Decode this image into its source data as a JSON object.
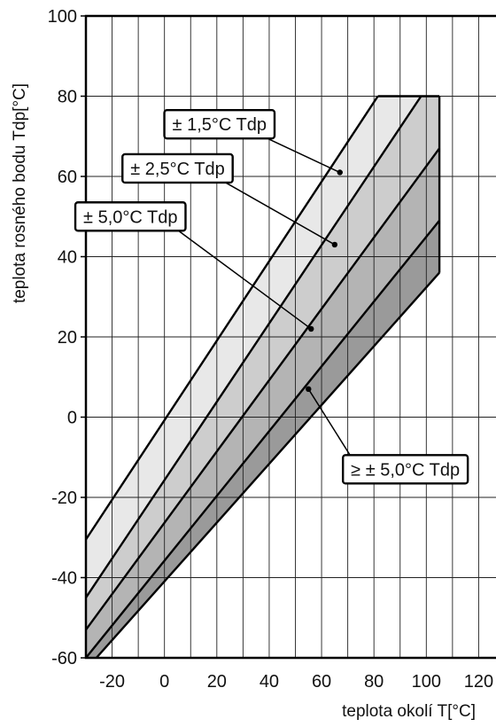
{
  "chart_data": {
    "type": "area",
    "xlabel": "teplota okolí  T[°C]",
    "ylabel": "teplota rosného bodu  Tdp[°C]",
    "xlim": [
      -30,
      130
    ],
    "ylim": [
      -60,
      100
    ],
    "x_ticks": [
      -20,
      0,
      20,
      40,
      60,
      80,
      100,
      120
    ],
    "y_ticks": [
      -60,
      -40,
      -20,
      0,
      20,
      40,
      60,
      80,
      100
    ],
    "x_tick_labels": [
      "-20",
      "0",
      "20",
      "40",
      "60",
      "80",
      "100",
      "120"
    ],
    "y_tick_labels": [
      "-60",
      "-40",
      "-20",
      "0",
      "20",
      "40",
      "60",
      "80",
      "100"
    ],
    "x_minor_step": 10,
    "y_grid_step": 20,
    "grid": true,
    "bands": [
      {
        "label": "± 1,5°C Tdp",
        "fill": "#e8e8e8",
        "polygon": [
          [
            -30,
            -30.5
          ],
          [
            81.5,
            80
          ],
          [
            105,
            80
          ],
          [
            105,
            80
          ],
          [
            -30,
            -45
          ]
        ]
      },
      {
        "label": "± 2,5°C Tdp",
        "fill": "#cdcdcd",
        "polygon": [
          [
            -30,
            -45
          ],
          [
            98,
            80
          ],
          [
            105,
            80
          ],
          [
            105,
            67
          ],
          [
            -30,
            -53
          ]
        ]
      },
      {
        "label": "± 5,0°C Tdp",
        "fill": "#b4b4b4",
        "polygon": [
          [
            -30,
            -53
          ],
          [
            105,
            67
          ],
          [
            105,
            49
          ],
          [
            -30,
            -60
          ]
        ]
      },
      {
        "label": "≥ ± 5,0°C Tdp",
        "fill": "#9a9a9a",
        "polygon": [
          [
            -30,
            -60
          ],
          [
            105,
            49
          ],
          [
            105,
            36
          ],
          [
            -26,
            -60
          ]
        ]
      }
    ],
    "lines": [
      [
        [
          -30,
          -30.5
        ],
        [
          81.5,
          80
        ]
      ],
      [
        [
          -30,
          -45
        ],
        [
          98,
          80
        ]
      ],
      [
        [
          -30,
          -53
        ],
        [
          105,
          67
        ]
      ],
      [
        [
          -30,
          -60
        ],
        [
          105,
          49
        ]
      ],
      [
        [
          -26,
          -60
        ],
        [
          105,
          36
        ]
      ],
      [
        [
          81.5,
          80
        ],
        [
          105,
          80
        ]
      ],
      [
        [
          105,
          80
        ],
        [
          105,
          36
        ]
      ]
    ],
    "annotations": [
      {
        "text": "± 1,5°C Tdp",
        "point": [
          67,
          61
        ],
        "box_x": 21,
        "box_y": 73
      },
      {
        "text": "± 2,5°C Tdp",
        "point": [
          65,
          43
        ],
        "box_x": 5,
        "box_y": 62
      },
      {
        "text": "± 5,0°C Tdp",
        "point": [
          56,
          22
        ],
        "box_x": -13,
        "box_y": 50
      },
      {
        "text": "≥ ± 5,0°C Tdp",
        "point": [
          55,
          7
        ],
        "box_x": 92,
        "box_y": -13
      }
    ]
  }
}
